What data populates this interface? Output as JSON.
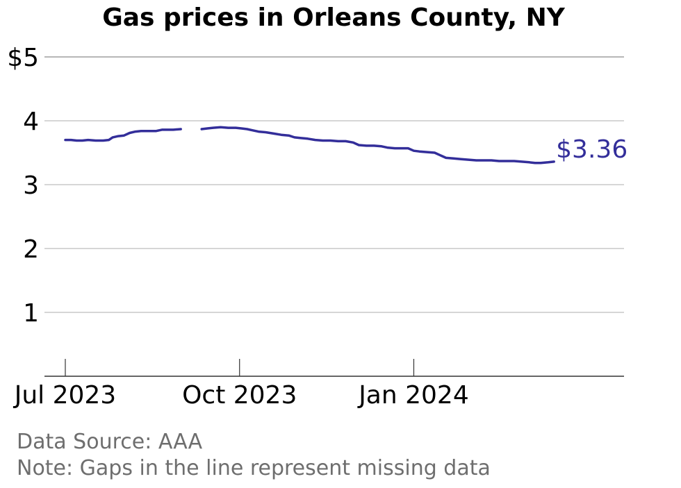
{
  "chart_data": {
    "type": "line",
    "title": "Gas prices in Orleans County, NY",
    "xlabel": "",
    "ylabel": "",
    "x_range": [
      "2023-06-20",
      "2024-04-21"
    ],
    "ylim": [
      0,
      5
    ],
    "y_ticks": [
      {
        "value": 1,
        "label": "1"
      },
      {
        "value": 2,
        "label": "2"
      },
      {
        "value": 3,
        "label": "3"
      },
      {
        "value": 4,
        "label": "4"
      },
      {
        "value": 5,
        "label": "$5"
      }
    ],
    "x_ticks": [
      {
        "date": "2023-07-01",
        "label": "Jul 2023"
      },
      {
        "date": "2023-10-01",
        "label": "Oct 2023"
      },
      {
        "date": "2024-01-01",
        "label": "Jan 2024"
      }
    ],
    "grid": true,
    "line_color": "#332e9a",
    "end_label": "$3.36",
    "series": [
      {
        "segments": [
          [
            [
              "2023-07-01",
              3.7
            ],
            [
              "2023-07-04",
              3.7
            ],
            [
              "2023-07-07",
              3.69
            ],
            [
              "2023-07-10",
              3.69
            ],
            [
              "2023-07-13",
              3.7
            ],
            [
              "2023-07-17",
              3.69
            ],
            [
              "2023-07-21",
              3.69
            ],
            [
              "2023-07-24",
              3.7
            ],
            [
              "2023-07-26",
              3.74
            ],
            [
              "2023-07-29",
              3.76
            ],
            [
              "2023-08-01",
              3.77
            ],
            [
              "2023-08-04",
              3.81
            ],
            [
              "2023-08-07",
              3.83
            ],
            [
              "2023-08-10",
              3.84
            ],
            [
              "2023-08-14",
              3.84
            ],
            [
              "2023-08-18",
              3.84
            ],
            [
              "2023-08-21",
              3.86
            ],
            [
              "2023-08-24",
              3.86
            ],
            [
              "2023-08-27",
              3.86
            ],
            [
              "2023-08-31",
              3.87
            ]
          ],
          [
            [
              "2023-09-11",
              3.87
            ],
            [
              "2023-09-14",
              3.88
            ],
            [
              "2023-09-17",
              3.89
            ],
            [
              "2023-09-21",
              3.9
            ],
            [
              "2023-09-25",
              3.89
            ],
            [
              "2023-09-29",
              3.89
            ],
            [
              "2023-10-02",
              3.88
            ],
            [
              "2023-10-05",
              3.87
            ],
            [
              "2023-10-08",
              3.85
            ],
            [
              "2023-10-11",
              3.83
            ],
            [
              "2023-10-15",
              3.82
            ],
            [
              "2023-10-19",
              3.8
            ],
            [
              "2023-10-23",
              3.78
            ],
            [
              "2023-10-27",
              3.77
            ],
            [
              "2023-10-30",
              3.74
            ],
            [
              "2023-11-02",
              3.73
            ],
            [
              "2023-11-06",
              3.72
            ],
            [
              "2023-11-10",
              3.7
            ],
            [
              "2023-11-14",
              3.69
            ],
            [
              "2023-11-18",
              3.69
            ],
            [
              "2023-11-22",
              3.68
            ],
            [
              "2023-11-26",
              3.68
            ],
            [
              "2023-11-30",
              3.66
            ],
            [
              "2023-12-03",
              3.62
            ],
            [
              "2023-12-07",
              3.61
            ],
            [
              "2023-12-11",
              3.61
            ],
            [
              "2023-12-15",
              3.6
            ],
            [
              "2023-12-18",
              3.58
            ],
            [
              "2023-12-22",
              3.57
            ],
            [
              "2023-12-26",
              3.57
            ],
            [
              "2023-12-29",
              3.57
            ],
            [
              "2024-01-01",
              3.53
            ],
            [
              "2024-01-04",
              3.52
            ],
            [
              "2024-01-08",
              3.51
            ],
            [
              "2024-01-12",
              3.5
            ],
            [
              "2024-01-15",
              3.46
            ],
            [
              "2024-01-18",
              3.42
            ],
            [
              "2024-01-22",
              3.41
            ],
            [
              "2024-01-26",
              3.4
            ],
            [
              "2024-01-30",
              3.39
            ],
            [
              "2024-02-03",
              3.38
            ],
            [
              "2024-02-07",
              3.38
            ],
            [
              "2024-02-11",
              3.38
            ],
            [
              "2024-02-15",
              3.37
            ],
            [
              "2024-02-19",
              3.37
            ],
            [
              "2024-02-23",
              3.37
            ],
            [
              "2024-02-27",
              3.36
            ],
            [
              "2024-03-02",
              3.35
            ],
            [
              "2024-03-05",
              3.34
            ],
            [
              "2024-03-08",
              3.34
            ],
            [
              "2024-03-12",
              3.35
            ],
            [
              "2024-03-15",
              3.36
            ]
          ]
        ]
      }
    ]
  },
  "notes": {
    "source": "Data Source: AAA",
    "gap_note": "Note: Gaps in the line represent missing data"
  }
}
